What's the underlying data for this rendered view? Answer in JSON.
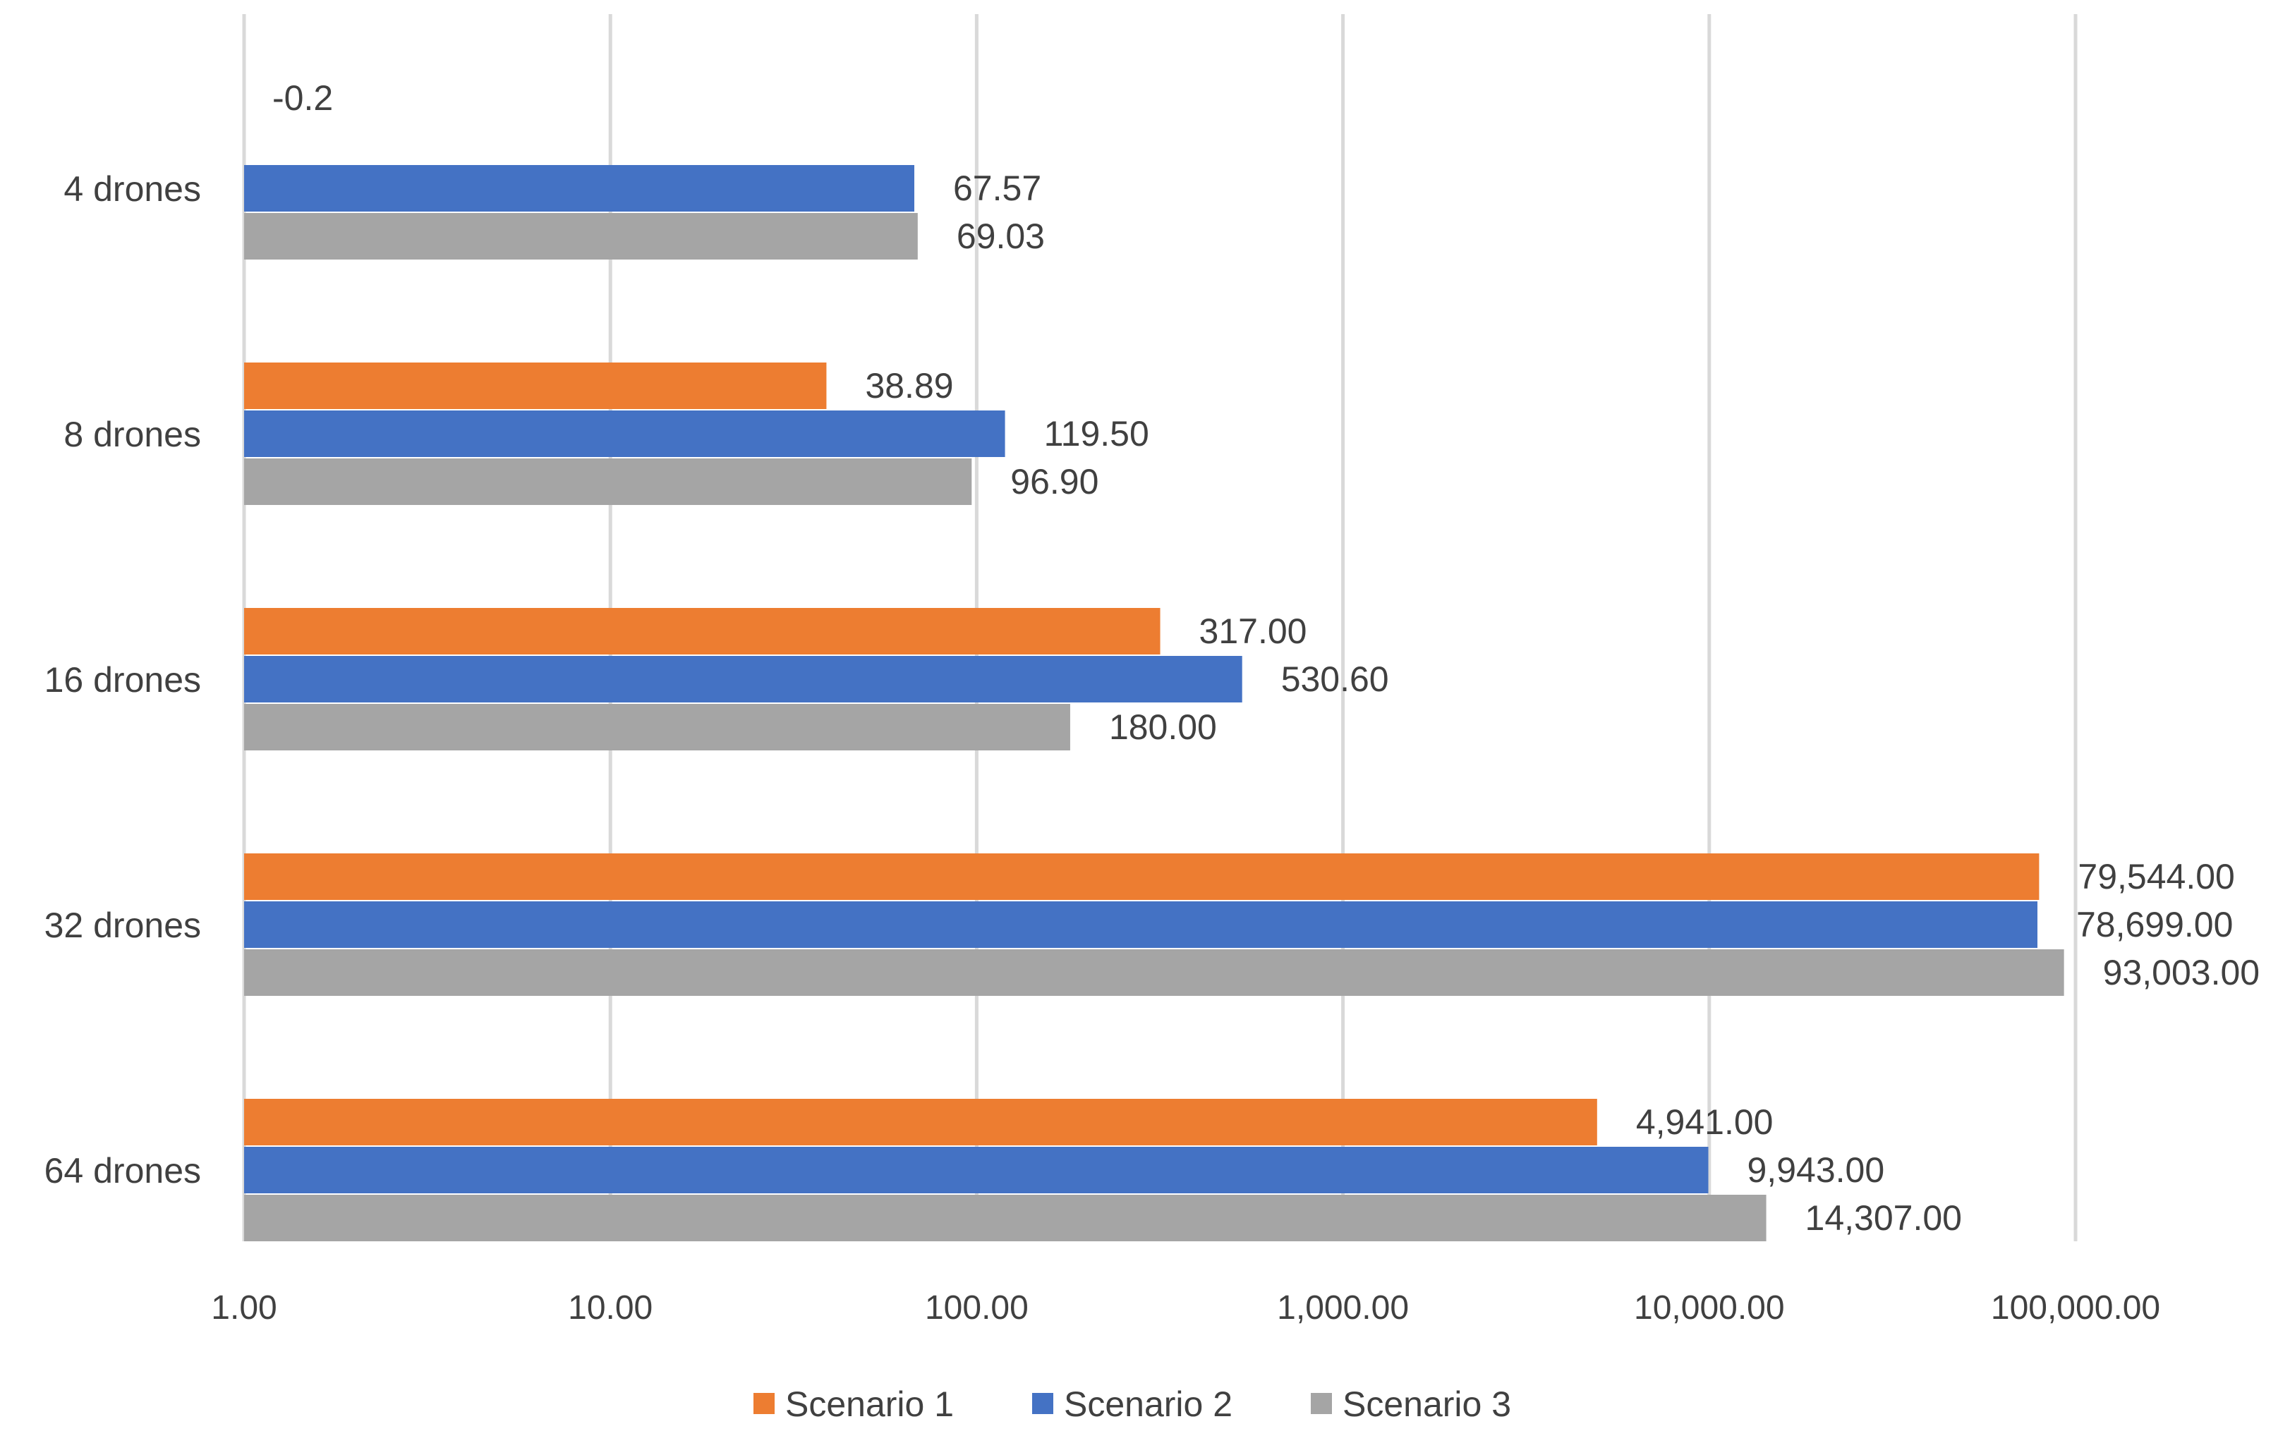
{
  "chart_data": {
    "type": "bar",
    "orientation": "horizontal",
    "x_scale": "log10",
    "xlim": [
      1,
      100000
    ],
    "categories": [
      "4 drones",
      "8 drones",
      "16 drones",
      "32 drones",
      "64 drones"
    ],
    "series": [
      {
        "name": "Scenario 1",
        "color": "#ED7D31",
        "values": [
          -0.2,
          38.89,
          317.0,
          79544.0,
          4941.0
        ],
        "labels": [
          "-0.2",
          "38.89",
          "317.00",
          "79,544.00",
          "4,941.00"
        ]
      },
      {
        "name": "Scenario 2",
        "color": "#4472C4",
        "values": [
          67.57,
          119.5,
          530.6,
          78699.0,
          9943.0
        ],
        "labels": [
          "67.57",
          "119.50",
          "530.60",
          "78,699.00",
          "9,943.00"
        ]
      },
      {
        "name": "Scenario 3",
        "color": "#A5A5A5",
        "values": [
          69.03,
          96.9,
          180.0,
          93003.0,
          14307.0
        ],
        "labels": [
          "69.03",
          "96.90",
          "180.00",
          "93,003.00",
          "14,307.00"
        ]
      }
    ],
    "ticks": [
      {
        "value": 1,
        "label": "1.00"
      },
      {
        "value": 10,
        "label": "10.00"
      },
      {
        "value": 100,
        "label": "100.00"
      },
      {
        "value": 1000,
        "label": "1,000.00"
      },
      {
        "value": 10000,
        "label": "10,000.00"
      },
      {
        "value": 100000,
        "label": "100,000.00"
      }
    ],
    "grid": true,
    "legend": "bottom",
    "title": "",
    "xlabel": "",
    "ylabel": ""
  }
}
